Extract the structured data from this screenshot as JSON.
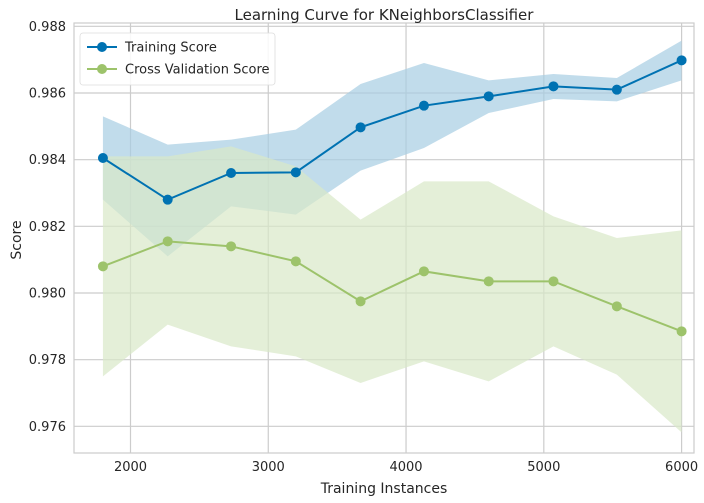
{
  "chart_data": {
    "type": "line",
    "title": "Learning Curve for KNeighborsClassifier",
    "xlabel": "Training Instances",
    "ylabel": "Score",
    "xlim": [
      1590,
      6090
    ],
    "ylim": [
      0.9752,
      0.9881
    ],
    "x_ticks": [
      2000,
      3000,
      4000,
      5000,
      6000
    ],
    "x_tick_labels": [
      "2000",
      "3000",
      "4000",
      "5000",
      "6000"
    ],
    "y_ticks": [
      0.976,
      0.978,
      0.98,
      0.982,
      0.984,
      0.986,
      0.988
    ],
    "y_tick_labels": [
      "0.976",
      "0.978",
      "0.980",
      "0.982",
      "0.984",
      "0.986",
      "0.988"
    ],
    "grid": true,
    "legend_position": "top-left",
    "x": [
      1800,
      2270,
      2730,
      3200,
      3670,
      4130,
      4600,
      5070,
      5530,
      6000
    ],
    "series": [
      {
        "name": "Training Score",
        "color": "#0072b2",
        "band_color": "#a6cde2",
        "values": [
          0.98405,
          0.9828,
          0.9836,
          0.98362,
          0.98497,
          0.98562,
          0.9859,
          0.9862,
          0.9861,
          0.98698
        ],
        "upper": [
          0.9853,
          0.98445,
          0.9846,
          0.9849,
          0.98627,
          0.9869,
          0.98638,
          0.98657,
          0.98645,
          0.98757
        ],
        "lower": [
          0.9828,
          0.9811,
          0.9826,
          0.98235,
          0.98367,
          0.98435,
          0.9854,
          0.98582,
          0.98575,
          0.98638
        ]
      },
      {
        "name": "Cross Validation Score",
        "color": "#9dc36b",
        "band_color": "#d9e8c8",
        "values": [
          0.9808,
          0.98155,
          0.9814,
          0.98095,
          0.97975,
          0.98065,
          0.98035,
          0.98035,
          0.9796,
          0.97885
        ],
        "upper": [
          0.9841,
          0.9841,
          0.9844,
          0.9838,
          0.9822,
          0.98335,
          0.98335,
          0.9823,
          0.98165,
          0.98188
        ],
        "lower": [
          0.9775,
          0.97905,
          0.9784,
          0.9781,
          0.9773,
          0.97795,
          0.97735,
          0.9784,
          0.97755,
          0.97582
        ]
      }
    ]
  }
}
